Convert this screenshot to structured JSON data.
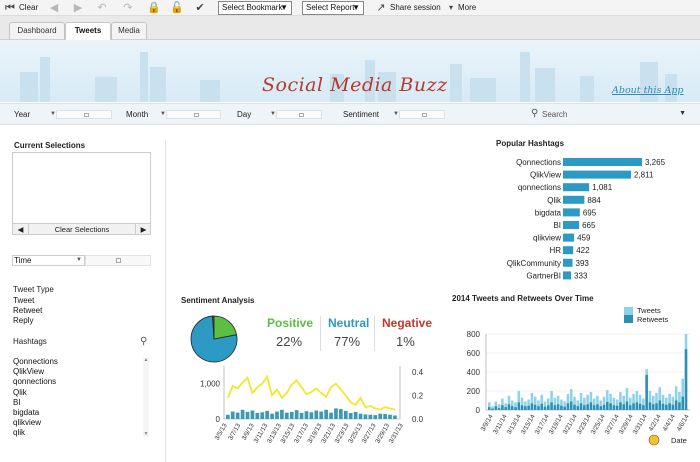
{
  "toolbar": {
    "clear_label": "Clear",
    "bookmark_select": "Select Bookmark",
    "report_select": "Select Report",
    "share_label": "Share session",
    "more_label": "More"
  },
  "tabs": [
    {
      "label": "Dashboard"
    },
    {
      "label": "Tweets"
    },
    {
      "label": "Media"
    }
  ],
  "banner": {
    "title": "Social Media Buzz",
    "about_link": "About this App"
  },
  "filters": {
    "year": "Year",
    "month": "Month",
    "day": "Day",
    "sentiment": "Sentiment",
    "search_placeholder": "Search"
  },
  "left_panel": {
    "current_selections": "Current Selections",
    "clear_selections": "Clear Selections",
    "time_select": "Time",
    "tweet_type_title": "Tweet Type",
    "tweet_types": [
      "Tweet",
      "Retweet",
      "Reply"
    ],
    "hashtags_title": "Hashtags",
    "hashtags": [
      "Qonnections",
      "QlikView",
      "qonnections",
      "Qlik",
      "BI",
      "bigdata",
      "qlikview",
      "qlik"
    ]
  },
  "sentiment": {
    "title": "Sentiment Analysis",
    "positive_label": "Positive",
    "positive_value": "22%",
    "neutral_label": "Neutral",
    "neutral_value": "77%",
    "negative_label": "Negative",
    "negative_value": "1%",
    "pie": {
      "positive": 22,
      "neutral": 77,
      "negative": 1
    },
    "colors": {
      "positive": "#5bbf43",
      "neutral": "#2c9ac3",
      "negative": "#c4372c",
      "line": "#f0e92a",
      "bar": "#3a9ab5"
    }
  },
  "chart_data": [
    {
      "type": "bar",
      "title": "Popular Hashtags",
      "categories": [
        "Qonnections",
        "QlikView",
        "qonnections",
        "Qlik",
        "bigdata",
        "BI",
        "qlikview",
        "HR",
        "QlikCommunity",
        "GartnerBI"
      ],
      "values": [
        3265,
        2811,
        1081,
        884,
        695,
        665,
        459,
        422,
        393,
        333
      ],
      "value_labels": [
        "3,265",
        "2,811",
        "1,081",
        "884",
        "695",
        "665",
        "459",
        "422",
        "393",
        "333"
      ],
      "orientation": "horizontal",
      "color": "#2c9ac3"
    },
    {
      "type": "bar",
      "subtype": "combo-bar-line",
      "title": "",
      "x": [
        "3/5/13",
        "3/7/13",
        "3/9/13",
        "3/11/13",
        "3/13/13",
        "3/15/13",
        "3/17/13",
        "3/19/13",
        "3/21/13",
        "3/23/13",
        "3/25/13",
        "3/27/13",
        "3/29/13",
        "3/31/13"
      ],
      "left_ticks": [
        "1,000",
        "0"
      ],
      "right_ticks": [
        "0.4",
        "0.2",
        "0.0"
      ],
      "ylim_left": [
        0,
        1500
      ],
      "ylim_right": [
        0,
        0.45
      ],
      "bars": [
        120,
        210,
        180,
        260,
        200,
        240,
        170,
        190,
        230,
        150,
        210,
        260,
        180,
        200,
        250,
        170,
        220,
        190,
        240,
        210,
        260,
        180,
        300,
        280,
        230,
        170,
        200,
        150,
        130,
        120,
        110,
        150,
        140,
        120,
        100
      ],
      "line": [
        0.18,
        0.28,
        0.26,
        0.31,
        0.35,
        0.22,
        0.27,
        0.3,
        0.36,
        0.2,
        0.25,
        0.18,
        0.22,
        0.29,
        0.33,
        0.27,
        0.21,
        0.23,
        0.26,
        0.22,
        0.19,
        0.27,
        0.3,
        0.25,
        0.2,
        0.14,
        0.12,
        0.18,
        0.1,
        0.11,
        0.09,
        0.08,
        0.1,
        0.09,
        0.08
      ]
    },
    {
      "type": "bar",
      "title": "2014 Tweets and Retweets Over Time",
      "legend": [
        "Tweets",
        "Retweets"
      ],
      "colors": {
        "Tweets": "#8fd3ea",
        "Retweets": "#2c8fb3"
      },
      "x": [
        "3/9/14",
        "3/11/14",
        "3/13/14",
        "3/15/14",
        "3/17/14",
        "3/19/14",
        "3/21/14",
        "3/23/14",
        "3/25/14",
        "3/27/14",
        "3/29/14",
        "3/31/14",
        "4/2/14",
        "4/4/14",
        "4/6/14"
      ],
      "y_ticks": [
        "800",
        "600",
        "400",
        "200",
        "0"
      ],
      "ylim": [
        0,
        800
      ],
      "xlabel": "Date",
      "tweets": [
        80,
        40,
        90,
        60,
        120,
        70,
        150,
        100,
        80,
        200,
        130,
        90,
        110,
        180,
        140,
        100,
        160,
        90,
        120,
        200,
        130,
        150,
        110,
        90,
        170,
        220,
        140,
        100,
        180,
        130,
        160,
        190,
        120,
        150,
        100,
        140,
        210,
        170,
        130,
        110,
        190,
        150,
        230,
        130,
        170,
        200,
        160,
        120,
        430,
        200,
        150,
        180,
        240,
        160,
        130,
        170,
        140,
        250,
        190,
        330,
        800
      ],
      "retweets": [
        30,
        15,
        40,
        20,
        50,
        30,
        60,
        40,
        30,
        80,
        50,
        40,
        45,
        70,
        55,
        40,
        65,
        35,
        50,
        80,
        50,
        60,
        45,
        35,
        70,
        90,
        55,
        40,
        70,
        50,
        60,
        80,
        50,
        60,
        40,
        55,
        85,
        70,
        50,
        45,
        80,
        60,
        90,
        50,
        70,
        80,
        65,
        50,
        370,
        80,
        60,
        70,
        100,
        65,
        55,
        70,
        55,
        100,
        80,
        140,
        640
      ]
    }
  ]
}
